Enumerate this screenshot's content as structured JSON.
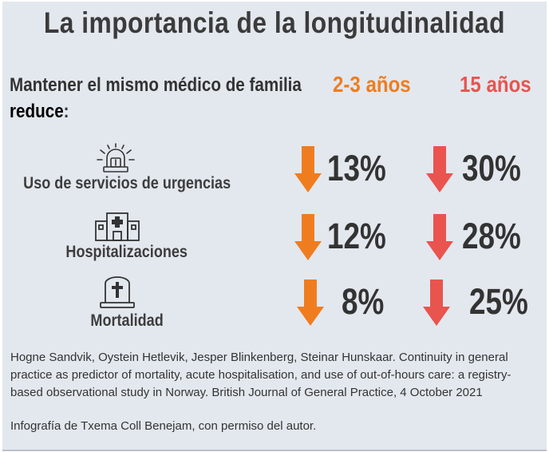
{
  "title": "La importancia de la longitudinalidad",
  "intro": {
    "line1": "Mantener el  mismo médico de familia",
    "line2_bold": "reduce",
    "line2_colon": ":"
  },
  "columns": {
    "a": "2-3 años",
    "b": "15 años"
  },
  "rows": [
    {
      "label": "Uso de servicios de urgencias",
      "icon": "siren-icon",
      "a": "13%",
      "b": "30%"
    },
    {
      "label": "Hospitalizaciones",
      "icon": "hospital-icon",
      "a": "12%",
      "b": "28%"
    },
    {
      "label": "Mortalidad",
      "icon": "tombstone-icon",
      "a": "8%",
      "b": "25%"
    }
  ],
  "colors": {
    "background": "#e3e8ee",
    "orange": "#ef7d1f",
    "red": "#e9544f"
  },
  "reference": "Hogne Sandvik, Oystein Hetlevik, Jesper Blinkenberg, Steinar Hunskaar. Continuity in general practice as predictor of mortality, acute hospitalisation, and use of out-of-hours care: a registry-based observational study in Norway. British Journal of General Practice, 4 October 2021",
  "credit": "Infografía de Txema Coll Benejam, con permiso del autor."
}
